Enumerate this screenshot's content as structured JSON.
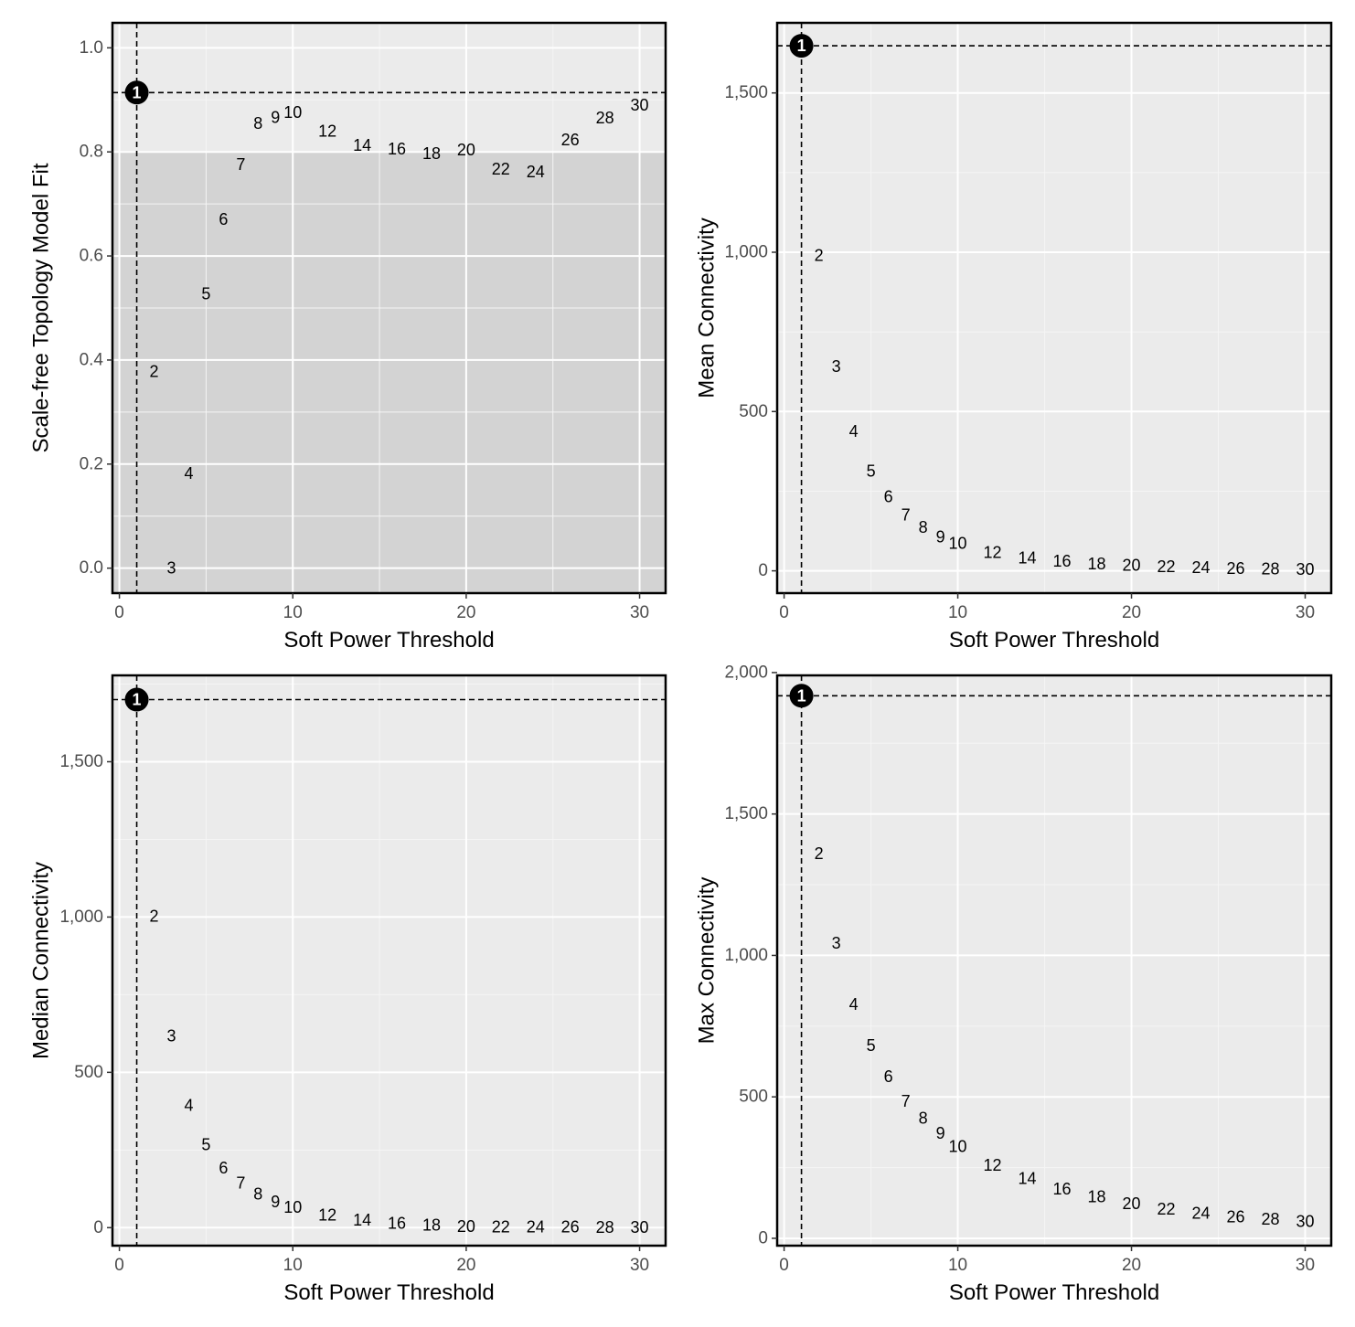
{
  "colors": {
    "panel_background": "#EBEBEB",
    "grid_major": "#FFFFFF",
    "grid_minor": "#F5F5F5",
    "threshold_shading": "#D3D3D3",
    "panel_border": "#000000",
    "tick_text": "#4D4D4D",
    "label_text": "#000000",
    "highlight_point": "#000000",
    "highlight_text": "#FFFFFF",
    "reference_line": "#000000"
  },
  "chart_data": [
    {
      "id": "scale-free-fit",
      "type": "scatter",
      "marker": "text-labels",
      "xlabel": "Soft Power Threshold",
      "ylabel": "Scale-free Topology Model Fit",
      "xlim": [
        -0.4,
        31.5
      ],
      "ylim": [
        -0.048,
        1.048
      ],
      "xticks": [
        0,
        10,
        20,
        30
      ],
      "xtick_labels": [
        "0",
        "10",
        "20",
        "30"
      ],
      "yticks": [
        0,
        0.2,
        0.4,
        0.6,
        0.8,
        1.0
      ],
      "ytick_labels": [
        "0.0",
        "0.2",
        "0.4",
        "0.6",
        "0.8",
        "1.0"
      ],
      "shaded_region_y": [
        -0.048,
        0.8
      ],
      "highlight": {
        "x": 1,
        "y": 0.914,
        "label": "1"
      },
      "reference_lines": {
        "vertical_x": 1,
        "horizontal_y": 0.914,
        "style": "dashed"
      },
      "points": [
        {
          "x": 2,
          "y": 0.378,
          "label": "2"
        },
        {
          "x": 3,
          "y": 0.0,
          "label": "3"
        },
        {
          "x": 4,
          "y": 0.182,
          "label": "4"
        },
        {
          "x": 5,
          "y": 0.527,
          "label": "5"
        },
        {
          "x": 6,
          "y": 0.67,
          "label": "6"
        },
        {
          "x": 7,
          "y": 0.776,
          "label": "7"
        },
        {
          "x": 8,
          "y": 0.855,
          "label": "8"
        },
        {
          "x": 9,
          "y": 0.866,
          "label": "9"
        },
        {
          "x": 10,
          "y": 0.876,
          "label": "10"
        },
        {
          "x": 12,
          "y": 0.84,
          "label": "12"
        },
        {
          "x": 14,
          "y": 0.813,
          "label": "14"
        },
        {
          "x": 16,
          "y": 0.806,
          "label": "16"
        },
        {
          "x": 18,
          "y": 0.797,
          "label": "18"
        },
        {
          "x": 20,
          "y": 0.804,
          "label": "20"
        },
        {
          "x": 22,
          "y": 0.767,
          "label": "22"
        },
        {
          "x": 24,
          "y": 0.762,
          "label": "24"
        },
        {
          "x": 26,
          "y": 0.823,
          "label": "26"
        },
        {
          "x": 28,
          "y": 0.865,
          "label": "28"
        },
        {
          "x": 30,
          "y": 0.89,
          "label": "30"
        }
      ]
    },
    {
      "id": "mean-connectivity",
      "type": "scatter",
      "marker": "text-labels",
      "xlabel": "Soft Power Threshold",
      "ylabel": "Mean Connectivity",
      "xlim": [
        -0.4,
        31.5
      ],
      "ylim": [
        -70,
        1720
      ],
      "xticks": [
        0,
        10,
        20,
        30
      ],
      "xtick_labels": [
        "0",
        "10",
        "20",
        "30"
      ],
      "yticks": [
        0,
        500,
        1000,
        1500
      ],
      "ytick_labels": [
        "0",
        "500",
        "1,000",
        "1,500"
      ],
      "highlight": {
        "x": 1,
        "y": 1648,
        "label": "1"
      },
      "reference_lines": {
        "vertical_x": 1,
        "horizontal_y": 1648,
        "style": "dashed"
      },
      "points": [
        {
          "x": 2,
          "y": 990,
          "label": "2"
        },
        {
          "x": 3,
          "y": 641,
          "label": "3"
        },
        {
          "x": 4,
          "y": 438,
          "label": "4"
        },
        {
          "x": 5,
          "y": 313,
          "label": "5"
        },
        {
          "x": 6,
          "y": 232,
          "label": "6"
        },
        {
          "x": 7,
          "y": 175,
          "label": "7"
        },
        {
          "x": 8,
          "y": 136,
          "label": "8"
        },
        {
          "x": 9,
          "y": 107,
          "label": "9"
        },
        {
          "x": 10,
          "y": 86,
          "label": "10"
        },
        {
          "x": 12,
          "y": 58,
          "label": "12"
        },
        {
          "x": 14,
          "y": 41,
          "label": "14"
        },
        {
          "x": 16,
          "y": 30,
          "label": "16"
        },
        {
          "x": 18,
          "y": 22,
          "label": "18"
        },
        {
          "x": 20,
          "y": 17,
          "label": "20"
        },
        {
          "x": 22,
          "y": 13,
          "label": "22"
        },
        {
          "x": 24,
          "y": 10,
          "label": "24"
        },
        {
          "x": 26,
          "y": 8,
          "label": "26"
        },
        {
          "x": 28,
          "y": 6,
          "label": "28"
        },
        {
          "x": 30,
          "y": 5,
          "label": "30"
        }
      ]
    },
    {
      "id": "median-connectivity",
      "type": "scatter",
      "marker": "text-labels",
      "xlabel": "Soft Power Threshold",
      "ylabel": "Median Connectivity",
      "xlim": [
        -0.4,
        31.5
      ],
      "ylim": [
        -58,
        1778
      ],
      "xticks": [
        0,
        10,
        20,
        30
      ],
      "xtick_labels": [
        "0",
        "10",
        "20",
        "30"
      ],
      "yticks": [
        0,
        500,
        1000,
        1500
      ],
      "ytick_labels": [
        "0",
        "500",
        "1,000",
        "1,500"
      ],
      "highlight": {
        "x": 1,
        "y": 1700,
        "label": "1"
      },
      "reference_lines": {
        "vertical_x": 1,
        "horizontal_y": 1700,
        "style": "dashed"
      },
      "points": [
        {
          "x": 2,
          "y": 1002,
          "label": "2"
        },
        {
          "x": 3,
          "y": 617,
          "label": "3"
        },
        {
          "x": 4,
          "y": 393,
          "label": "4"
        },
        {
          "x": 5,
          "y": 267,
          "label": "5"
        },
        {
          "x": 6,
          "y": 192,
          "label": "6"
        },
        {
          "x": 7,
          "y": 144,
          "label": "7"
        },
        {
          "x": 8,
          "y": 108,
          "label": "8"
        },
        {
          "x": 9,
          "y": 83,
          "label": "9"
        },
        {
          "x": 10,
          "y": 65,
          "label": "10"
        },
        {
          "x": 12,
          "y": 40,
          "label": "12"
        },
        {
          "x": 14,
          "y": 24,
          "label": "14"
        },
        {
          "x": 16,
          "y": 14,
          "label": "16"
        },
        {
          "x": 18,
          "y": 8,
          "label": "18"
        },
        {
          "x": 20,
          "y": 4,
          "label": "20"
        },
        {
          "x": 22,
          "y": 3,
          "label": "22"
        },
        {
          "x": 24,
          "y": 2,
          "label": "24"
        },
        {
          "x": 26,
          "y": 2,
          "label": "26"
        },
        {
          "x": 28,
          "y": 1,
          "label": "28"
        },
        {
          "x": 30,
          "y": 1,
          "label": "30"
        }
      ]
    },
    {
      "id": "max-connectivity",
      "type": "scatter",
      "marker": "text-labels",
      "xlabel": "Soft Power Threshold",
      "ylabel": "Max Connectivity",
      "xlim": [
        -0.4,
        31.5
      ],
      "ylim": [
        -26,
        1990
      ],
      "xticks": [
        0,
        10,
        20,
        30
      ],
      "xtick_labels": [
        "0",
        "10",
        "20",
        "30"
      ],
      "yticks": [
        0,
        500,
        1000,
        1500,
        2000
      ],
      "ytick_labels": [
        "0",
        "500",
        "1,000",
        "1,500",
        "2,000"
      ],
      "highlight": {
        "x": 1,
        "y": 1918,
        "label": "1"
      },
      "reference_lines": {
        "vertical_x": 1,
        "horizontal_y": 1918,
        "style": "dashed"
      },
      "points": [
        {
          "x": 2,
          "y": 1360,
          "label": "2"
        },
        {
          "x": 3,
          "y": 1043,
          "label": "3"
        },
        {
          "x": 4,
          "y": 827,
          "label": "4"
        },
        {
          "x": 5,
          "y": 682,
          "label": "5"
        },
        {
          "x": 6,
          "y": 572,
          "label": "6"
        },
        {
          "x": 7,
          "y": 485,
          "label": "7"
        },
        {
          "x": 8,
          "y": 425,
          "label": "8"
        },
        {
          "x": 9,
          "y": 372,
          "label": "9"
        },
        {
          "x": 10,
          "y": 325,
          "label": "10"
        },
        {
          "x": 12,
          "y": 259,
          "label": "12"
        },
        {
          "x": 14,
          "y": 212,
          "label": "14"
        },
        {
          "x": 16,
          "y": 174,
          "label": "16"
        },
        {
          "x": 18,
          "y": 147,
          "label": "18"
        },
        {
          "x": 20,
          "y": 122,
          "label": "20"
        },
        {
          "x": 22,
          "y": 103,
          "label": "22"
        },
        {
          "x": 24,
          "y": 88,
          "label": "24"
        },
        {
          "x": 26,
          "y": 76,
          "label": "26"
        },
        {
          "x": 28,
          "y": 67,
          "label": "28"
        },
        {
          "x": 30,
          "y": 59,
          "label": "30"
        }
      ]
    }
  ]
}
